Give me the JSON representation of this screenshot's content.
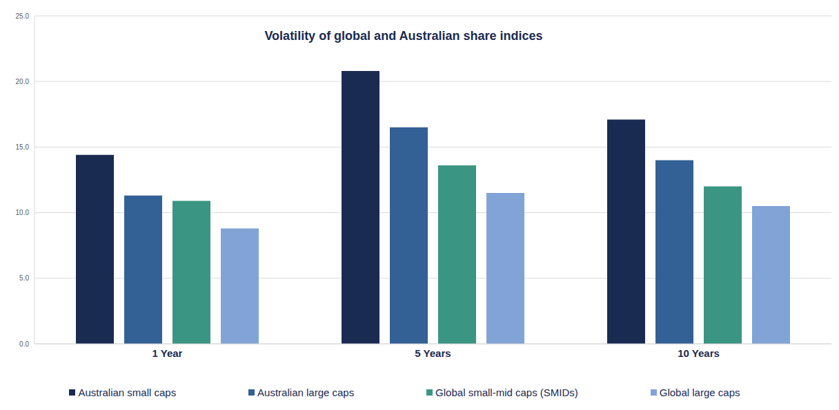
{
  "chart_data": {
    "type": "bar",
    "title": "Volatility of global and Australian share indices",
    "categories": [
      "1 Year",
      "5 Years",
      "10 Years"
    ],
    "series": [
      {
        "name": "Australian small caps",
        "color": "#1a2b52",
        "values": [
          14.4,
          20.8,
          17.1
        ]
      },
      {
        "name": "Australian large caps",
        "color": "#336195",
        "values": [
          11.3,
          16.5,
          14.0
        ]
      },
      {
        "name": "Global small-mid caps (SMIDs)",
        "color": "#3a9682",
        "values": [
          10.9,
          13.6,
          12.0
        ]
      },
      {
        "name": "Global large caps",
        "color": "#82a3d6",
        "values": [
          8.8,
          11.5,
          10.5
        ]
      }
    ],
    "ylim": [
      0,
      25
    ],
    "yticks": [
      {
        "value": 0,
        "label": "0.0"
      },
      {
        "value": 5,
        "label": "5.0"
      },
      {
        "value": 10,
        "label": "10.0"
      },
      {
        "value": 15,
        "label": "15.0"
      },
      {
        "value": 20,
        "label": "20.0"
      },
      {
        "value": 25,
        "label": "25.0"
      }
    ],
    "grid": true,
    "legend": "bottom"
  }
}
